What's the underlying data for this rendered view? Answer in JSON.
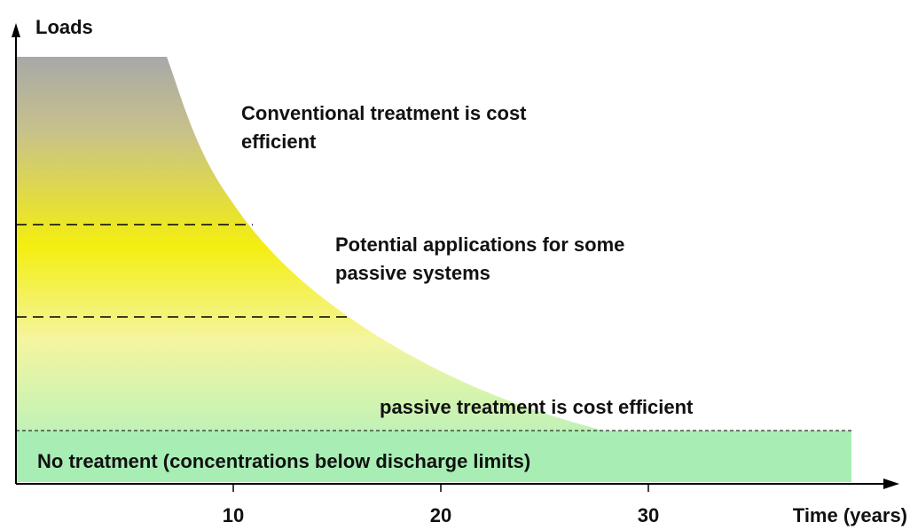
{
  "y_axis": {
    "label": "Loads"
  },
  "x_axis": {
    "label": "Time (years)",
    "ticks": [
      10,
      20,
      30
    ]
  },
  "regions": {
    "conventional": "Conventional treatment is cost efficient",
    "potential": "Potential applications for some passive systems",
    "passive": "passive treatment is cost efficient",
    "none": "No treatment (concentrations below discharge limits)"
  }
}
